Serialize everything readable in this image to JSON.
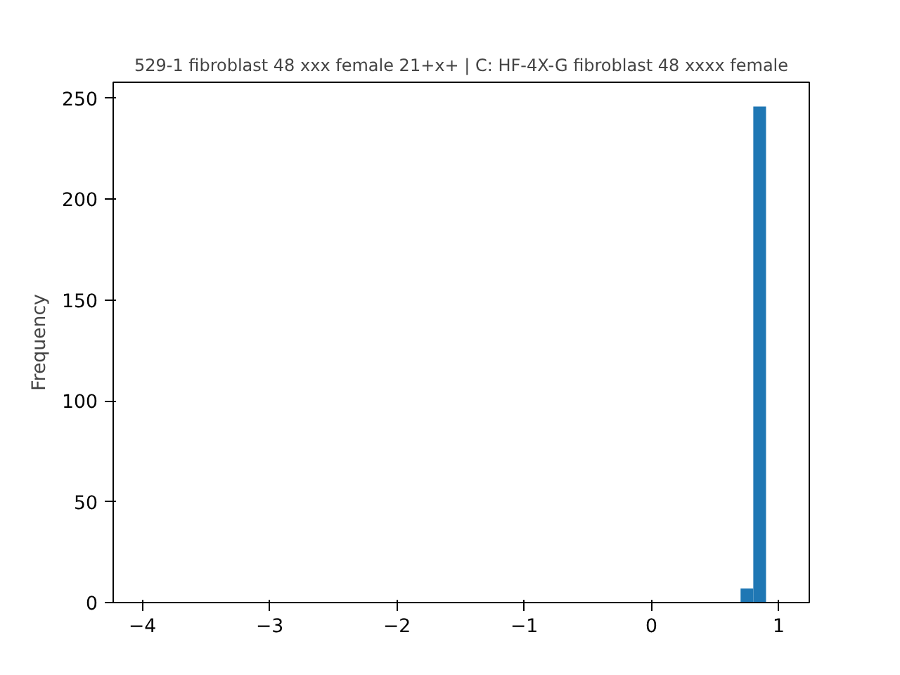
{
  "chart_data": {
    "type": "histogram",
    "title": "529-1 fibroblast 48 xxx female 21+x+ | C: HF-4X-G fibroblast 48 xxxx female",
    "ylabel": "Frequency",
    "bins": [
      0.7,
      0.8,
      0.9
    ],
    "values": [
      7,
      246
    ],
    "color": "#1f77b4",
    "xlim": [
      -4.23,
      1.24
    ],
    "xticks": [
      -4,
      -3,
      -2,
      -1,
      0,
      1
    ],
    "ylim": [
      0,
      258
    ],
    "yticks": [
      0,
      50,
      100,
      150,
      200,
      250
    ],
    "grid": false
  }
}
